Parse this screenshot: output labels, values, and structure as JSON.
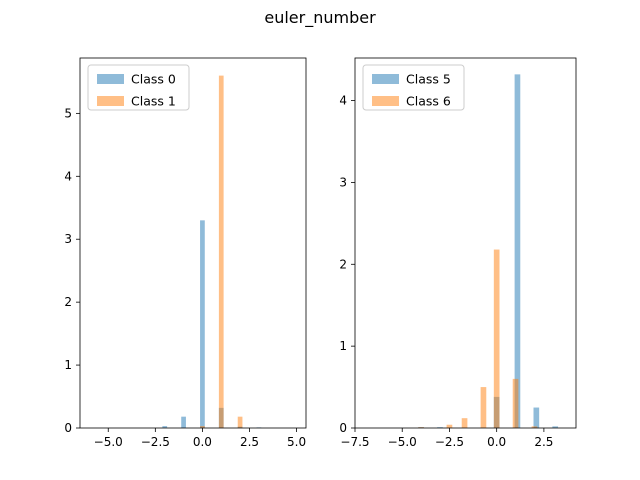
{
  "figure_title": "euler_number",
  "chart_data": [
    {
      "type": "bar",
      "title": "",
      "xlabel": "",
      "ylabel": "",
      "xlim": [
        -6.5,
        5.5
      ],
      "ylim": [
        0,
        5.88
      ],
      "xticks": [
        -5.0,
        -2.5,
        0.0,
        2.5,
        5.0
      ],
      "xtick_labels": [
        "−5.0",
        "−2.5",
        "0.0",
        "2.5",
        "5.0"
      ],
      "yticks": [
        0,
        1,
        2,
        3,
        4,
        5
      ],
      "ytick_labels": [
        "0",
        "1",
        "2",
        "3",
        "4",
        "5"
      ],
      "bar_width": 0.25,
      "grid": false,
      "legend_position": "top-left",
      "series": [
        {
          "name": "Class 0",
          "color": "#1f77b4",
          "bins": [
            {
              "x": -2.0,
              "value": 0.03
            },
            {
              "x": -1.0,
              "value": 0.18
            },
            {
              "x": 0.0,
              "value": 3.3
            },
            {
              "x": 1.0,
              "value": 0.32
            },
            {
              "x": 2.0,
              "value": 0.02
            },
            {
              "x": 3.0,
              "value": 0.01
            }
          ]
        },
        {
          "name": "Class 1",
          "color": "#ff7f0e",
          "bins": [
            {
              "x": 0.0,
              "value": 0.03
            },
            {
              "x": 1.0,
              "value": 5.6
            },
            {
              "x": 2.0,
              "value": 0.18
            }
          ]
        }
      ]
    },
    {
      "type": "bar",
      "title": "",
      "xlabel": "",
      "ylabel": "",
      "xlim": [
        -7.5,
        4.2
      ],
      "ylim": [
        0,
        4.52
      ],
      "xticks": [
        -7.5,
        -5.0,
        -2.5,
        0.0,
        2.5
      ],
      "xtick_labels": [
        "−7.5",
        "−5.0",
        "−2.5",
        "0.0",
        "2.5"
      ],
      "yticks": [
        0,
        1,
        2,
        3,
        4
      ],
      "ytick_labels": [
        "0",
        "1",
        "2",
        "3",
        "4"
      ],
      "bar_width": 0.3,
      "grid": false,
      "legend_position": "top-left",
      "series": [
        {
          "name": "Class 5",
          "color": "#1f77b4",
          "bins": [
            {
              "x": -4.0,
              "value": 0.01
            },
            {
              "x": -3.0,
              "value": 0.01
            },
            {
              "x": 0.0,
              "value": 0.38
            },
            {
              "x": 1.1,
              "value": 4.32
            },
            {
              "x": 2.1,
              "value": 0.25
            },
            {
              "x": 3.1,
              "value": 0.02
            }
          ]
        },
        {
          "name": "Class 6",
          "color": "#ff7f0e",
          "bins": [
            {
              "x": -4.0,
              "value": 0.01
            },
            {
              "x": -2.5,
              "value": 0.04
            },
            {
              "x": -1.7,
              "value": 0.12
            },
            {
              "x": -0.7,
              "value": 0.5
            },
            {
              "x": 0.0,
              "value": 2.18
            },
            {
              "x": 1.0,
              "value": 0.6
            },
            {
              "x": 2.0,
              "value": 0.02
            }
          ]
        }
      ]
    }
  ]
}
